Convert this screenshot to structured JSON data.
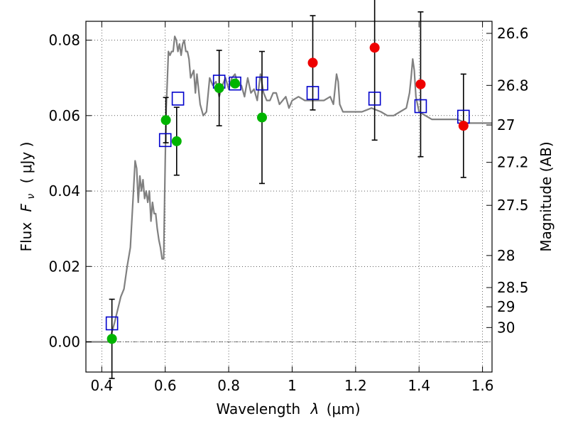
{
  "chart_data": {
    "type": "scatter",
    "xlabel": "Wavelength",
    "xlabel_symbol": "λ",
    "xlabel_unit": "(μm)",
    "ylabel": "Flux",
    "ylabel_symbol": "F",
    "ylabel_symbol_sub": "ν",
    "ylabel_unit": "( μJy )",
    "ylabel_right": "Magnitude (AB)",
    "xlim": [
      0.35,
      1.63
    ],
    "ylim": [
      -0.008,
      0.085
    ],
    "grid": true,
    "x_ticks": [
      {
        "value": 0.4,
        "label": "0.4"
      },
      {
        "value": 0.6,
        "label": "0.6"
      },
      {
        "value": 0.8,
        "label": "0.8"
      },
      {
        "value": 1.0,
        "label": "1"
      },
      {
        "value": 1.2,
        "label": "1.2"
      },
      {
        "value": 1.4,
        "label": "1.4"
      },
      {
        "value": 1.6,
        "label": "1.6"
      }
    ],
    "y_ticks": [
      {
        "value": 0.0,
        "label": "0.00"
      },
      {
        "value": 0.02,
        "label": "0.02"
      },
      {
        "value": 0.04,
        "label": "0.04"
      },
      {
        "value": 0.06,
        "label": "0.06"
      },
      {
        "value": 0.08,
        "label": "0.08"
      }
    ],
    "right_ticks": [
      {
        "label": "26.6",
        "flux": 0.0818
      },
      {
        "label": "26.8",
        "flux": 0.068
      },
      {
        "label": "27",
        "flux": 0.0575
      },
      {
        "label": "27.2",
        "flux": 0.0476
      },
      {
        "label": "27.5",
        "flux": 0.0362
      },
      {
        "label": "28",
        "flux": 0.0229
      },
      {
        "label": "28.5",
        "flux": 0.0144
      },
      {
        "label": "29",
        "flux": 0.0093
      },
      {
        "label": "30",
        "flux": 0.0038
      }
    ],
    "model_spectrum": {
      "color": "#808080",
      "x": [
        0.35,
        0.42,
        0.43,
        0.44,
        0.45,
        0.46,
        0.47,
        0.48,
        0.49,
        0.5,
        0.505,
        0.51,
        0.515,
        0.52,
        0.525,
        0.53,
        0.535,
        0.54,
        0.545,
        0.55,
        0.555,
        0.56,
        0.565,
        0.57,
        0.575,
        0.58,
        0.585,
        0.59,
        0.595,
        0.6,
        0.603,
        0.606,
        0.61,
        0.615,
        0.62,
        0.625,
        0.63,
        0.635,
        0.64,
        0.645,
        0.65,
        0.655,
        0.66,
        0.665,
        0.67,
        0.675,
        0.68,
        0.685,
        0.69,
        0.695,
        0.7,
        0.71,
        0.72,
        0.73,
        0.74,
        0.75,
        0.76,
        0.77,
        0.78,
        0.79,
        0.8,
        0.81,
        0.82,
        0.83,
        0.84,
        0.85,
        0.86,
        0.87,
        0.88,
        0.89,
        0.9,
        0.91,
        0.92,
        0.93,
        0.94,
        0.95,
        0.96,
        0.97,
        0.98,
        0.99,
        1.0,
        1.02,
        1.04,
        1.06,
        1.08,
        1.1,
        1.12,
        1.13,
        1.14,
        1.145,
        1.15,
        1.16,
        1.18,
        1.2,
        1.22,
        1.25,
        1.28,
        1.3,
        1.32,
        1.34,
        1.36,
        1.37,
        1.375,
        1.38,
        1.385,
        1.39,
        1.4,
        1.42,
        1.44,
        1.46,
        1.48,
        1.5,
        1.52,
        1.55,
        1.58,
        1.6,
        1.63
      ],
      "y": [
        0.0,
        0.0,
        0.002,
        0.005,
        0.0085,
        0.012,
        0.014,
        0.02,
        0.025,
        0.04,
        0.048,
        0.046,
        0.037,
        0.044,
        0.04,
        0.043,
        0.038,
        0.04,
        0.037,
        0.04,
        0.032,
        0.037,
        0.034,
        0.034,
        0.03,
        0.027,
        0.025,
        0.022,
        0.022,
        0.048,
        0.062,
        0.068,
        0.077,
        0.076,
        0.077,
        0.077,
        0.081,
        0.08,
        0.077,
        0.079,
        0.076,
        0.079,
        0.08,
        0.077,
        0.077,
        0.075,
        0.07,
        0.071,
        0.072,
        0.066,
        0.071,
        0.063,
        0.06,
        0.061,
        0.07,
        0.068,
        0.069,
        0.065,
        0.068,
        0.07,
        0.067,
        0.07,
        0.071,
        0.068,
        0.068,
        0.065,
        0.07,
        0.066,
        0.067,
        0.064,
        0.071,
        0.066,
        0.064,
        0.064,
        0.066,
        0.066,
        0.063,
        0.064,
        0.065,
        0.062,
        0.064,
        0.065,
        0.064,
        0.064,
        0.064,
        0.064,
        0.065,
        0.063,
        0.071,
        0.069,
        0.063,
        0.061,
        0.061,
        0.061,
        0.061,
        0.062,
        0.061,
        0.06,
        0.06,
        0.061,
        0.062,
        0.066,
        0.07,
        0.075,
        0.072,
        0.065,
        0.061,
        0.06,
        0.059,
        0.059,
        0.059,
        0.059,
        0.059,
        0.058,
        0.058,
        0.058,
        0.058
      ]
    },
    "series": [
      {
        "marker": "open-square",
        "color": "#0000cc",
        "points": [
          {
            "x": 0.432,
            "y": 0.0049
          },
          {
            "x": 0.6,
            "y": 0.0535
          },
          {
            "x": 0.64,
            "y": 0.0645
          },
          {
            "x": 0.77,
            "y": 0.069
          },
          {
            "x": 0.82,
            "y": 0.0685
          },
          {
            "x": 0.905,
            "y": 0.0685
          },
          {
            "x": 1.065,
            "y": 0.066
          },
          {
            "x": 1.26,
            "y": 0.0645
          },
          {
            "x": 1.405,
            "y": 0.0625
          },
          {
            "x": 1.54,
            "y": 0.0597
          }
        ]
      },
      {
        "marker": "filled-circle",
        "color": "#00b400",
        "points": [
          {
            "x": 0.432,
            "y": 0.0008,
            "err": 0.0105
          },
          {
            "x": 0.602,
            "y": 0.0588,
            "err": 0.006
          },
          {
            "x": 0.636,
            "y": 0.0532,
            "err": 0.009
          },
          {
            "x": 0.77,
            "y": 0.0673,
            "err": 0.01
          },
          {
            "x": 0.82,
            "y": 0.0685
          },
          {
            "x": 0.905,
            "y": 0.0595,
            "err": 0.0175
          }
        ]
      },
      {
        "marker": "filled-circle",
        "color": "#ee0000",
        "points": [
          {
            "x": 1.065,
            "y": 0.074,
            "err": 0.0125
          },
          {
            "x": 1.26,
            "y": 0.078,
            "err": 0.0245
          },
          {
            "x": 1.405,
            "y": 0.0683,
            "err": 0.0192
          },
          {
            "x": 1.54,
            "y": 0.0573,
            "err": 0.0137
          }
        ]
      }
    ]
  }
}
